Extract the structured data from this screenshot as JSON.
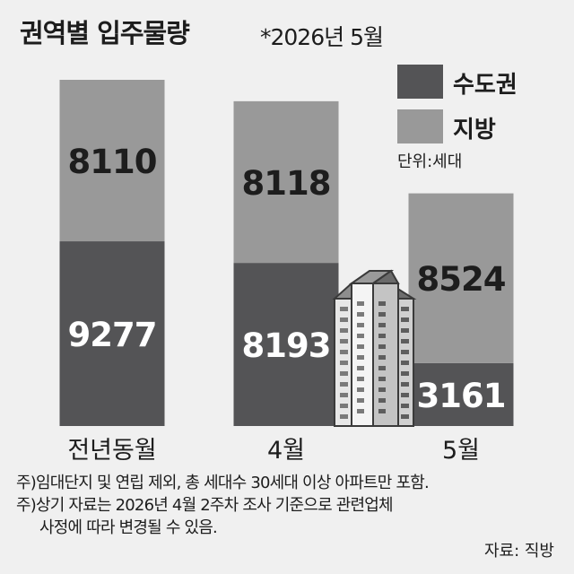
{
  "header": {
    "title": "권역별 입주물량",
    "subtitle": "*2026년 5월"
  },
  "legend": {
    "unit": "단위:세대"
  },
  "colors": {
    "capital": "#545456",
    "regional": "#999999",
    "background": "#f0f0f0"
  },
  "chart_data": {
    "type": "bar",
    "stacked": true,
    "title": "권역별 입주물량",
    "subtitle": "*2026년 5월",
    "unit": "단위:세대",
    "categories": [
      "전년동월",
      "4월",
      "5월"
    ],
    "series": [
      {
        "name": "수도권",
        "values": [
          9277,
          8193,
          3161
        ]
      },
      {
        "name": "지방",
        "values": [
          8110,
          8118,
          8524
        ]
      }
    ],
    "legend_position": "top-right",
    "grid": false
  },
  "footer": {
    "notes": [
      "주)임대단지 및 연립 제외, 총 세대수 30세대 이상 아파트만 포함.",
      "주)상기 자료는 2026년 4월 2주차 조사 기준으로 관련업체",
      "사정에 따라 변경될 수 있음."
    ],
    "source": "자료: 직방"
  }
}
